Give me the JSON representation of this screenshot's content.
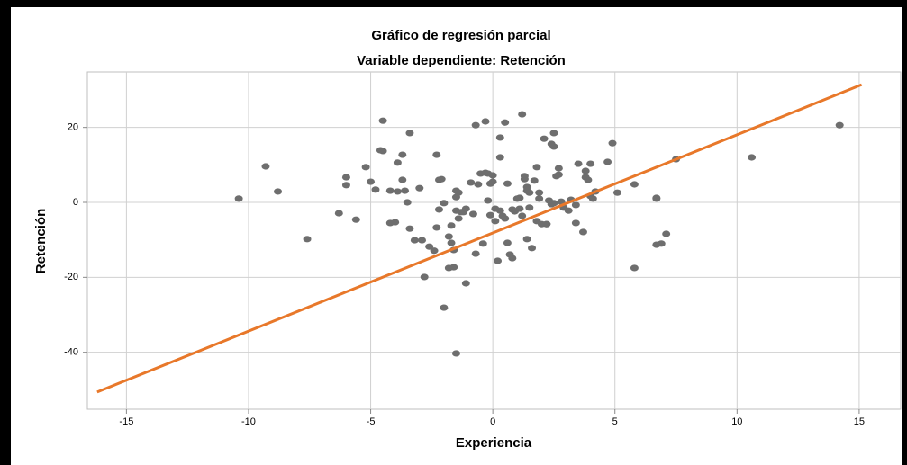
{
  "chart_data": {
    "type": "scatter",
    "title": "Gráfico de regresión parcial",
    "subtitle": "Variable dependiente: Retención",
    "x_label": "Experiencia",
    "y_label": "Retención",
    "xlim": [
      -16.6,
      16.7
    ],
    "xticks": [
      -15,
      -10,
      -5,
      0,
      5,
      10,
      15
    ],
    "ylim": [
      -55.2,
      34.8
    ],
    "yticks": [
      -40,
      -20,
      0,
      20
    ],
    "grid": true,
    "points": {
      "color": "#6e6e6e",
      "x": [
        -10.4,
        -9.3,
        -8.8,
        -7.6,
        -6.3,
        -6.0,
        -6.0,
        -5.6,
        -5.2,
        -5.0,
        -4.8,
        -4.6,
        -4.5,
        -4.5,
        -4.2,
        -4.2,
        -4.0,
        -3.9,
        -3.9,
        -3.7,
        -3.7,
        -3.6,
        -3.5,
        -3.4,
        -3.4,
        -3.2,
        -3.0,
        -2.9,
        -2.8,
        -2.6,
        -2.4,
        -2.3,
        -2.3,
        -2.2,
        -2.1,
        -2.2,
        -2.0,
        -1.8,
        -1.8,
        -1.7,
        -1.6,
        -1.7,
        -1.6,
        -1.5,
        -1.5,
        -1.5,
        -1.4,
        -1.4,
        -1.3,
        -1.2,
        -1.1,
        -1.1,
        -0.9,
        -0.8,
        -0.7,
        -0.7,
        -0.6,
        -0.5,
        -0.4,
        -0.3,
        -0.3,
        -0.2,
        -0.2,
        -0.1,
        -0.1,
        0.0,
        0.0,
        0.1,
        0.1,
        0.2,
        0.3,
        0.3,
        0.3,
        0.4,
        0.5,
        0.5,
        0.6,
        0.6,
        0.7,
        0.8,
        0.8,
        0.9,
        1.0,
        1.1,
        1.1,
        1.2,
        1.2,
        1.3,
        1.3,
        1.4,
        1.4,
        1.4,
        1.5,
        1.5,
        1.6,
        1.7,
        1.8,
        1.8,
        1.9,
        1.9,
        2.0,
        2.1,
        2.2,
        2.2,
        2.3,
        2.4,
        2.4,
        2.5,
        2.5,
        2.5,
        2.6,
        2.7,
        2.7,
        2.8,
        2.9,
        3.1,
        3.2,
        3.4,
        3.4,
        3.5,
        3.7,
        3.8,
        3.8,
        3.9,
        4.0,
        4.0,
        4.1,
        4.2,
        4.7,
        4.9,
        5.1,
        5.8,
        5.8,
        6.7,
        6.7,
        6.7,
        6.9,
        7.1,
        7.5,
        10.6,
        14.2,
        -1.5,
        -2.0
      ],
      "y": [
        1.0,
        9.6,
        2.9,
        -9.8,
        -2.9,
        6.7,
        4.6,
        -4.6,
        9.4,
        5.5,
        3.4,
        13.9,
        13.7,
        21.8,
        3.1,
        -5.5,
        -5.3,
        10.6,
        2.9,
        12.7,
        6.0,
        3.1,
        0,
        -7.0,
        18.5,
        -10.1,
        3.8,
        -10.1,
        -19.9,
        -11.8,
        -12.9,
        12.7,
        -6.7,
        6.0,
        6.2,
        -1.9,
        -0.2,
        -17.5,
        -9.1,
        -10.8,
        -17.3,
        -6.2,
        -12.7,
        3.1,
        -2.2,
        1.4,
        2.6,
        -4.3,
        -2.6,
        -2.6,
        -21.6,
        -1.7,
        5.3,
        -3.1,
        -13.7,
        20.6,
        4.8,
        7.7,
        -11.0,
        7.9,
        21.6,
        7.7,
        0.5,
        5.0,
        -3.4,
        5.5,
        7.2,
        -5.0,
        -1.7,
        -15.6,
        -2.2,
        12.0,
        17.3,
        -3.6,
        21.3,
        -4.3,
        -10.8,
        5.0,
        -13.9,
        -1.9,
        -14.9,
        -2.4,
        1.0,
        -1.7,
        1.2,
        -3.6,
        23.5,
        6.2,
        7.0,
        4.1,
        -9.8,
        3.1,
        2.6,
        -1.4,
        -12.2,
        5.8,
        9.4,
        -5.0,
        2.6,
        1.0,
        -5.8,
        17.0,
        -5.8,
        -5.8,
        0.5,
        -0.5,
        15.6,
        -0.2,
        14.9,
        18.5,
        7.0,
        7.4,
        9.1,
        0.2,
        -1.4,
        -2.2,
        0.7,
        -0.7,
        -5.5,
        10.3,
        -7.9,
        8.4,
        6.7,
        6.0,
        10.3,
        1.7,
        1.0,
        2.9,
        10.8,
        15.8,
        2.6,
        4.8,
        -17.5,
        1.2,
        1.0,
        -11.3,
        -11.0,
        -8.4,
        11.5,
        12.0,
        20.6,
        -40.3,
        -28.1
      ]
    },
    "fit_line": {
      "color": "#e8782a",
      "x": [
        -16.2,
        15.1
      ],
      "y": [
        -50.6,
        31.4
      ]
    }
  }
}
